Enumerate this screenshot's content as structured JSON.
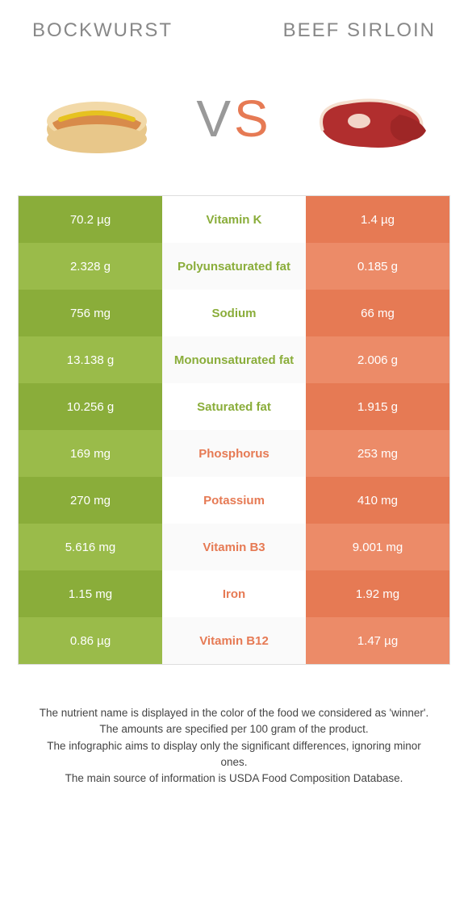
{
  "colors": {
    "green_dark": "#8aad3a",
    "green_light": "#9abb4a",
    "orange_dark": "#e67a54",
    "orange_light": "#ec8b68",
    "text_green": "#8aad3a",
    "text_orange": "#e67a54"
  },
  "header": {
    "left": "Bockwurst",
    "right": "Beef sirloin"
  },
  "vs": {
    "v": "V",
    "s": "S"
  },
  "nutrients": [
    {
      "name": "Vitamin K",
      "left": "70.2 µg",
      "right": "1.4 µg",
      "winner": "left"
    },
    {
      "name": "Polyunsaturated fat",
      "left": "2.328 g",
      "right": "0.185 g",
      "winner": "left"
    },
    {
      "name": "Sodium",
      "left": "756 mg",
      "right": "66 mg",
      "winner": "left"
    },
    {
      "name": "Monounsaturated fat",
      "left": "13.138 g",
      "right": "2.006 g",
      "winner": "left"
    },
    {
      "name": "Saturated fat",
      "left": "10.256 g",
      "right": "1.915 g",
      "winner": "left"
    },
    {
      "name": "Phosphorus",
      "left": "169 mg",
      "right": "253 mg",
      "winner": "right"
    },
    {
      "name": "Potassium",
      "left": "270 mg",
      "right": "410 mg",
      "winner": "right"
    },
    {
      "name": "Vitamin B3",
      "left": "5.616 mg",
      "right": "9.001 mg",
      "winner": "right"
    },
    {
      "name": "Iron",
      "left": "1.15 mg",
      "right": "1.92 mg",
      "winner": "right"
    },
    {
      "name": "Vitamin B12",
      "left": "0.86 µg",
      "right": "1.47 µg",
      "winner": "right"
    }
  ],
  "footer": {
    "line1": "The nutrient name is displayed in the color of the food we considered as 'winner'.",
    "line2": "The amounts are specified per 100 gram of the product.",
    "line3": "The infographic aims to display only the significant differences, ignoring minor ones.",
    "line4": "The main source of information is USDA Food Composition Database."
  }
}
